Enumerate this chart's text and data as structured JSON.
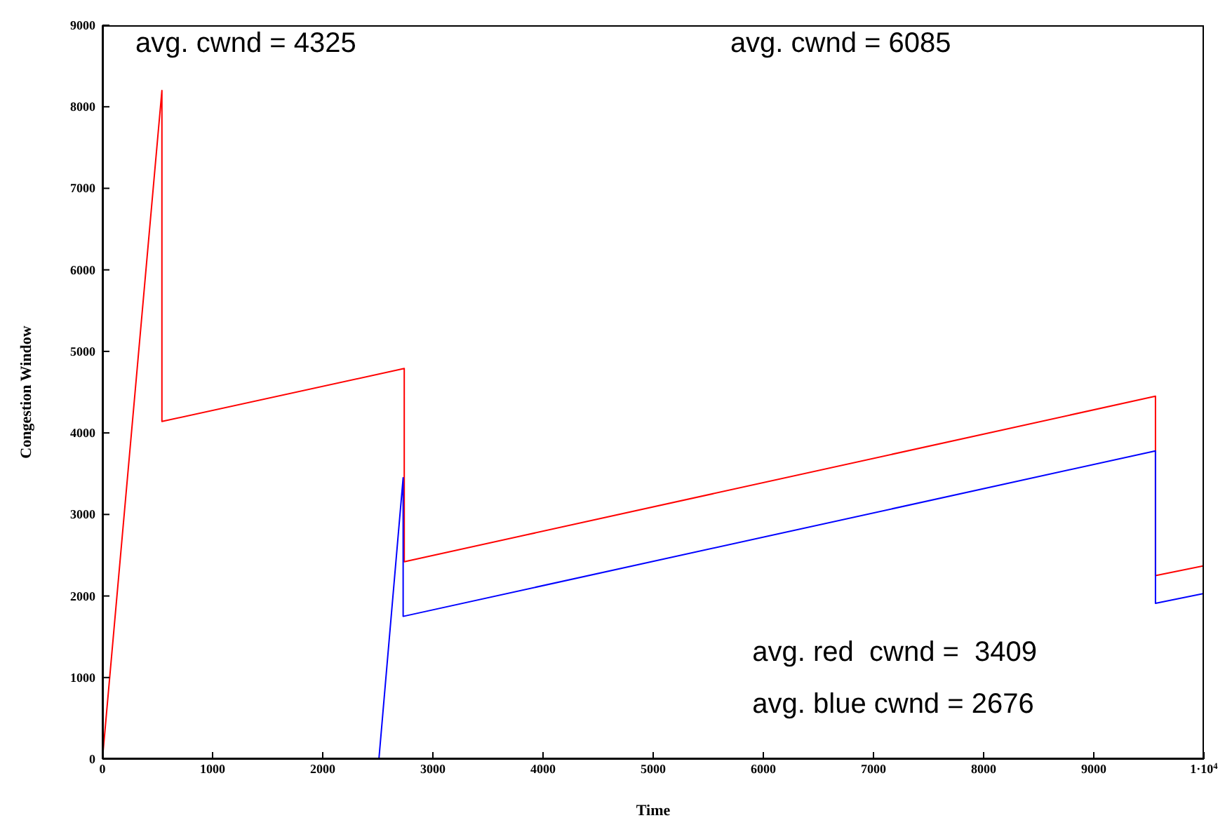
{
  "chart_data": {
    "type": "line",
    "xlabel": "Time",
    "ylabel": "Congestion Window",
    "xlim": [
      0,
      10000
    ],
    "ylim": [
      0,
      9000
    ],
    "xticks": [
      0,
      1000,
      2000,
      3000,
      4000,
      5000,
      6000,
      7000,
      8000,
      9000,
      {
        "value": 10000,
        "label": "1·10$^{4}$"
      }
    ],
    "yticks": [
      0,
      1000,
      2000,
      3000,
      4000,
      5000,
      6000,
      7000,
      8000,
      9000
    ],
    "grid": false,
    "legend": false,
    "marker": "none",
    "line_style": "solid",
    "series": [
      {
        "color": "#ff0000",
        "x": [
          0,
          540,
          540,
          2740,
          2740,
          9560,
          9560,
          10000
        ],
        "values": [
          0,
          8200,
          4140,
          4790,
          2420,
          4450,
          2250,
          2370
        ]
      },
      {
        "color": "#0000ff",
        "x": [
          0,
          2510,
          2730,
          2730,
          9560,
          9560,
          10000
        ],
        "values": [
          0,
          0,
          3450,
          1750,
          3780,
          1910,
          2030
        ]
      }
    ],
    "annotations": [
      "avg. cwnd = 4325",
      "avg. cwnd = 6085",
      "avg. red  cwnd =  3409",
      "avg. blue cwnd = 2676"
    ]
  }
}
